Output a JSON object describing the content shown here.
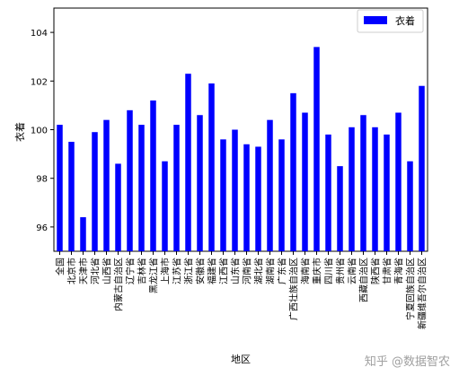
{
  "chart_data": {
    "type": "bar",
    "xlabel": "地区",
    "ylabel": "衣着",
    "legend": {
      "label": "衣着",
      "position": "top-right"
    },
    "ylim": [
      95,
      105
    ],
    "yticks": [
      96,
      98,
      100,
      102,
      104
    ],
    "bar_color": "#0000ff",
    "grid": false,
    "categories": [
      "全国",
      "北京市",
      "天津市",
      "河北省",
      "山西省",
      "内蒙古自治区",
      "辽宁省",
      "吉林省",
      "黑龙江省",
      "上海市",
      "江苏省",
      "浙江省",
      "安徽省",
      "福建省",
      "江西省",
      "山东省",
      "河南省",
      "湖北省",
      "湖南省",
      "广东省",
      "广西壮族自治区",
      "海南省",
      "重庆市",
      "四川省",
      "贵州省",
      "云南省",
      "西藏自治区",
      "陕西省",
      "甘肃省",
      "青海省",
      "宁夏回族自治区",
      "新疆维吾尔自治区"
    ],
    "values": [
      100.2,
      99.5,
      96.4,
      99.9,
      100.4,
      98.6,
      100.8,
      100.2,
      101.2,
      98.7,
      100.2,
      102.3,
      100.6,
      101.9,
      99.6,
      100.0,
      99.4,
      99.3,
      100.4,
      99.6,
      101.5,
      100.7,
      103.4,
      99.8,
      98.5,
      100.1,
      100.6,
      100.1,
      99.8,
      100.7,
      98.7,
      101.8
    ]
  },
  "watermark": "知乎 @数据智农"
}
